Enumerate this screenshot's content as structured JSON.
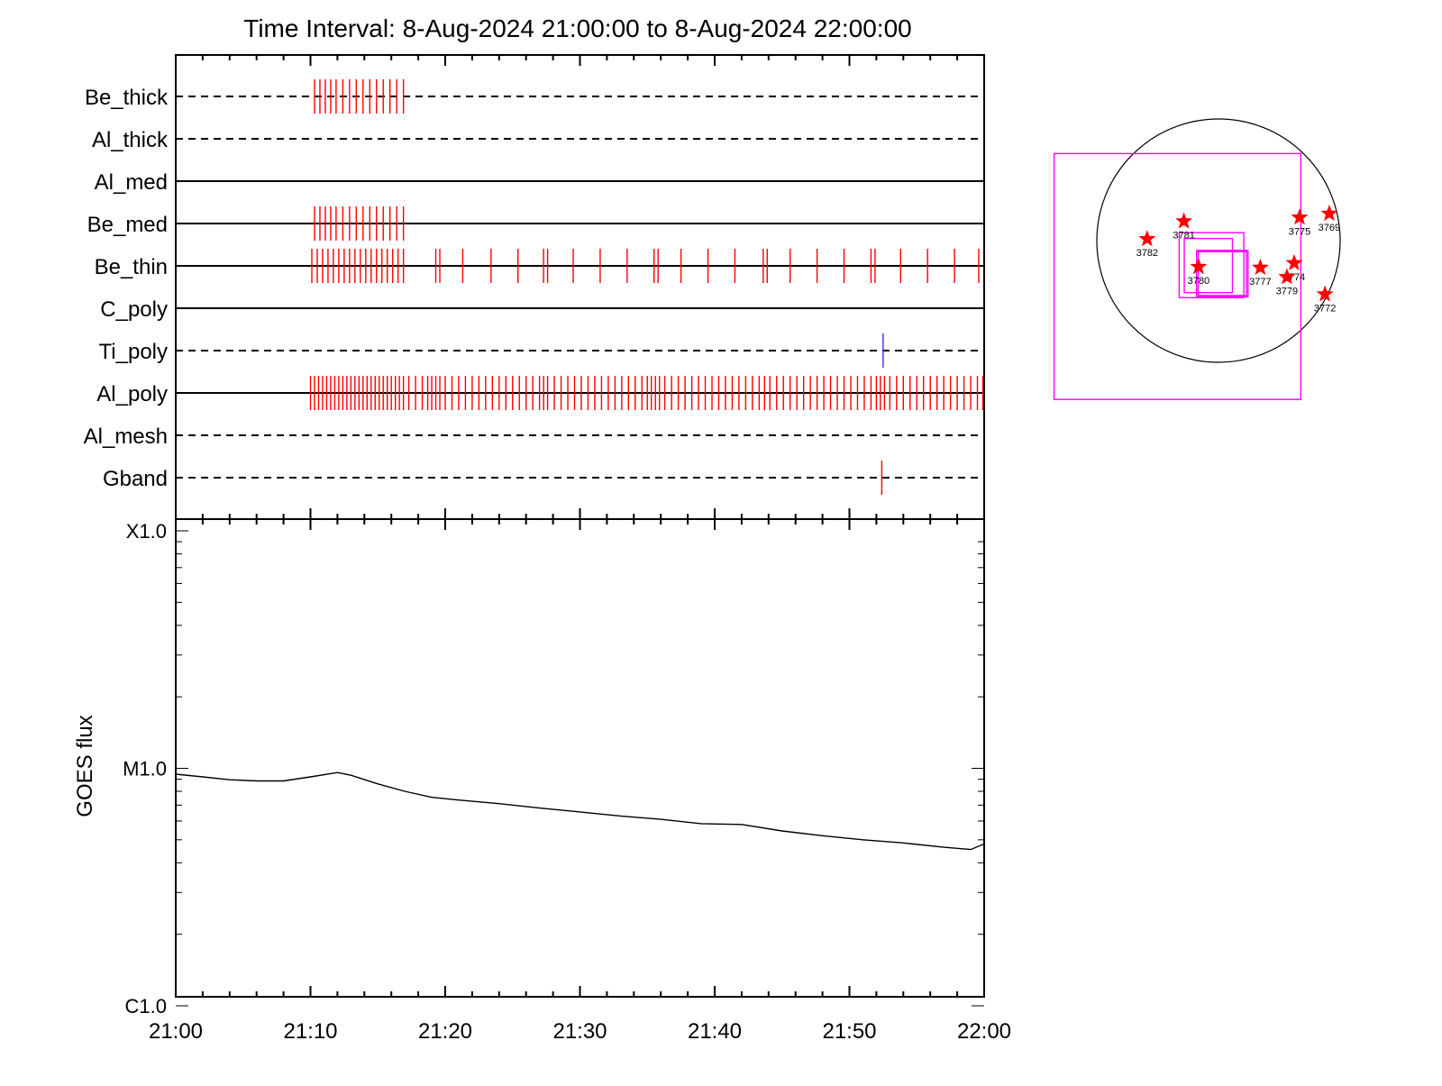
{
  "title": "Time Interval:  8-Aug-2024 21:00:00 to  8-Aug-2024 22:00:00",
  "chart_data": [
    {
      "type": "event-timeline",
      "x_range_minutes": [
        0,
        60
      ],
      "x_tick_labels": [
        "21:00",
        "21:10",
        "21:20",
        "21:30",
        "21:40",
        "21:50",
        "22:00"
      ],
      "rows": [
        {
          "label": "Be_thick",
          "line": "dashed",
          "color": "#ff0000",
          "events": [
            10.3,
            10.7,
            11.1,
            11.5,
            11.9,
            12.4,
            12.9,
            13.4,
            13.9,
            14.4,
            14.9,
            15.4,
            15.9,
            16.4,
            16.9
          ]
        },
        {
          "label": "Al_thick",
          "line": "dashed",
          "color": "#ff0000",
          "events": []
        },
        {
          "label": "Al_med",
          "line": "solid",
          "color": "#ff0000",
          "events": []
        },
        {
          "label": "Be_med",
          "line": "solid",
          "color": "#ff0000",
          "events": [
            10.3,
            10.7,
            11.1,
            11.5,
            11.9,
            12.4,
            12.9,
            13.4,
            13.9,
            14.4,
            14.9,
            15.4,
            15.9,
            16.4,
            16.9
          ]
        },
        {
          "label": "Be_thin",
          "line": "solid",
          "color": "#ff0000",
          "events": [
            10.1,
            10.5,
            10.9,
            11.3,
            11.7,
            12.1,
            12.5,
            12.9,
            13.3,
            13.7,
            14.1,
            14.5,
            14.9,
            15.3,
            15.7,
            16.1,
            16.5,
            16.9,
            19.3,
            19.6,
            21.3,
            23.4,
            25.4,
            27.3,
            27.6,
            29.5,
            31.5,
            33.5,
            35.5,
            35.8,
            37.5,
            39.5,
            41.5,
            43.6,
            43.9,
            45.6,
            47.6,
            49.6,
            51.6,
            51.9,
            53.8,
            55.8,
            57.8,
            59.6
          ]
        },
        {
          "label": "C_poly",
          "line": "solid",
          "color": "#ff0000",
          "events": []
        },
        {
          "label": "Ti_poly",
          "line": "dashed",
          "color": "#3333cc",
          "events": [
            52.5
          ]
        },
        {
          "label": "Al_poly",
          "line": "solid",
          "color": "#ff0000",
          "events": [
            10.0,
            10.3,
            10.6,
            10.9,
            11.2,
            11.5,
            11.8,
            12.1,
            12.4,
            12.7,
            13.0,
            13.3,
            13.6,
            13.9,
            14.2,
            14.5,
            14.8,
            15.1,
            15.4,
            15.7,
            16.0,
            16.3,
            16.6,
            16.9,
            17.3,
            17.8,
            18.3,
            18.7,
            19.0,
            19.3,
            19.6,
            20.0,
            20.5,
            21.0,
            21.5,
            22.0,
            22.5,
            23.0,
            23.5,
            24.0,
            24.5,
            25.0,
            25.5,
            26.0,
            26.5,
            27.0,
            27.3,
            27.6,
            28.1,
            28.6,
            29.1,
            29.6,
            30.1,
            30.6,
            31.1,
            31.6,
            32.1,
            32.6,
            33.1,
            33.6,
            34.1,
            34.6,
            35.0,
            35.3,
            35.6,
            35.9,
            36.3,
            36.8,
            37.3,
            37.8,
            38.3,
            38.8,
            39.3,
            39.8,
            40.3,
            40.8,
            41.3,
            41.8,
            42.3,
            42.8,
            43.3,
            43.7,
            44.1,
            44.6,
            45.1,
            45.6,
            46.1,
            46.6,
            47.1,
            47.6,
            48.1,
            48.6,
            49.1,
            49.6,
            50.1,
            50.6,
            51.1,
            51.6,
            52.0,
            52.3,
            52.6,
            53.0,
            53.5,
            54.0,
            54.5,
            55.0,
            55.5,
            56.0,
            56.5,
            57.0,
            57.5,
            58.0,
            58.5,
            59.0,
            59.5,
            59.9
          ]
        },
        {
          "label": "Al_mesh",
          "line": "dashed",
          "color": "#ff0000",
          "events": []
        },
        {
          "label": "Gband",
          "line": "dashed",
          "color": "#ff0000",
          "events": [
            52.4
          ]
        }
      ]
    },
    {
      "type": "line",
      "y_scale": "log",
      "ylabel": "GOES flux",
      "y_tick_labels": [
        "X1.0",
        "M1.0",
        "C1.0"
      ],
      "ylim": [
        1e-06,
        0.0001
      ],
      "x_range_minutes": [
        0,
        60
      ],
      "x_tick_labels": [
        "21:00",
        "21:10",
        "21:20",
        "21:30",
        "21:40",
        "21:50",
        "22:00"
      ],
      "series": [
        {
          "color": "#000000",
          "points": [
            [
              0,
              9.45e-06
            ],
            [
              2,
              9.2e-06
            ],
            [
              4,
              8.95e-06
            ],
            [
              6,
              8.85e-06
            ],
            [
              8,
              8.85e-06
            ],
            [
              10,
              9.2e-06
            ],
            [
              12,
              9.6e-06
            ],
            [
              13,
              9.35e-06
            ],
            [
              15,
              8.6e-06
            ],
            [
              17,
              8e-06
            ],
            [
              19,
              7.55e-06
            ],
            [
              21,
              7.35e-06
            ],
            [
              24,
              7.1e-06
            ],
            [
              27,
              6.8e-06
            ],
            [
              30,
              6.55e-06
            ],
            [
              33,
              6.3e-06
            ],
            [
              36,
              6.1e-06
            ],
            [
              39,
              5.85e-06
            ],
            [
              42,
              5.8e-06
            ],
            [
              45,
              5.45e-06
            ],
            [
              48,
              5.2e-06
            ],
            [
              51,
              5e-06
            ],
            [
              54,
              4.85e-06
            ],
            [
              57,
              4.65e-06
            ],
            [
              59,
              4.55e-06
            ],
            [
              60,
              4.8e-06
            ]
          ]
        }
      ]
    },
    {
      "type": "scatter",
      "panel": "solar-disk-map",
      "markers": [
        {
          "label": "3769",
          "x": 874,
          "y": 213
        },
        {
          "label": "3775",
          "x": 640,
          "y": 183
        },
        {
          "label": "3781",
          "x": -273,
          "y": 153
        },
        {
          "label": "3782",
          "x": -563,
          "y": 13
        },
        {
          "label": "3780",
          "x": -157,
          "y": -207
        },
        {
          "label": "3777",
          "x": 330,
          "y": -213
        },
        {
          "label": "3774",
          "x": 597,
          "y": -177
        },
        {
          "label": "3779",
          "x": 540,
          "y": -287
        },
        {
          "label": "3772",
          "x": 840,
          "y": -423
        }
      ],
      "boxes": [
        {
          "x": [
            -1297,
            650
          ],
          "y": [
            -1253,
            687
          ]
        },
        {
          "x": [
            -173,
            233
          ],
          "y": [
            -443,
            -77
          ]
        },
        {
          "x": [
            -160,
            220
          ],
          "y": [
            -433,
            -87
          ]
        },
        {
          "x": [
            -310,
            200
          ],
          "y": [
            -450,
            63
          ]
        },
        {
          "x": [
            -270,
            110
          ],
          "y": [
            -410,
            17
          ]
        }
      ],
      "colors": {
        "marker": "#ff0000",
        "box": "#ff00ff",
        "disk": "#000000"
      }
    }
  ]
}
